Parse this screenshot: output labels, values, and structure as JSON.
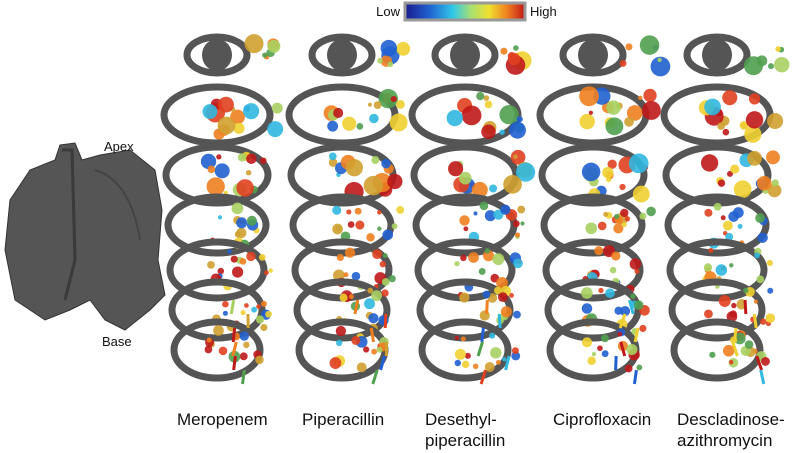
{
  "colorbar": {
    "low": "Low",
    "high": "High"
  },
  "lung": {
    "apex": "Apex",
    "base": "Base"
  },
  "panels": [
    {
      "lines": [
        "Meropenem"
      ]
    },
    {
      "lines": [
        "Piperacillin"
      ]
    },
    {
      "lines": [
        "Desethyl-",
        "piperacillin"
      ]
    },
    {
      "lines": [
        "Ciprofloxacin"
      ]
    },
    {
      "lines": [
        "Descladinose-",
        "azithromycin"
      ]
    }
  ]
}
